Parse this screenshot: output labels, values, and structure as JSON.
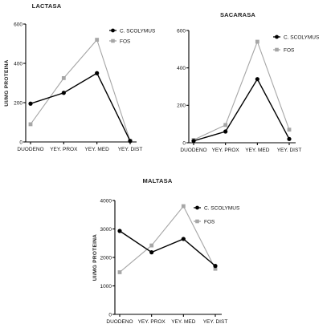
{
  "chart_data": [
    {
      "type": "line",
      "title": "LACTASA",
      "ylabel": "UI/MG PROTEINA",
      "xlabel": "",
      "categories": [
        "DUODENO",
        "YEY. PROX",
        "YEY. MED",
        "YEY. DIST"
      ],
      "ylim": [
        0,
        600
      ],
      "yticks": [
        0,
        200,
        400,
        600
      ],
      "grid": false,
      "legend_position": "top-right",
      "series": [
        {
          "name": "C. SCOLYMUS",
          "values": [
            195,
            250,
            350,
            5
          ],
          "color": "#000000",
          "marker": "circle"
        },
        {
          "name": "FOS",
          "values": [
            90,
            325,
            520,
            5
          ],
          "color": "#a6a6a6",
          "marker": "square"
        }
      ]
    },
    {
      "type": "line",
      "title": "SACARASA",
      "ylabel": "",
      "xlabel": "",
      "categories": [
        "DUODENO",
        "YEY. PROX",
        "YEY. MED",
        "YEY. DIST"
      ],
      "ylim": [
        0,
        600
      ],
      "yticks": [
        0,
        200,
        400,
        600
      ],
      "grid": false,
      "legend_position": "top-right",
      "series": [
        {
          "name": "C. SCOLYMUS",
          "values": [
            10,
            60,
            340,
            20
          ],
          "color": "#000000",
          "marker": "circle"
        },
        {
          "name": "FOS",
          "values": [
            15,
            95,
            540,
            70
          ],
          "color": "#a6a6a6",
          "marker": "square"
        }
      ]
    },
    {
      "type": "line",
      "title": "MALTASA",
      "ylabel": "UI/MG PROTEINA",
      "xlabel": "",
      "categories": [
        "DUODENO",
        "YEY. PROX",
        "YEY. MED",
        "YEY. DIST"
      ],
      "ylim": [
        0,
        4000
      ],
      "yticks": [
        0,
        1000,
        2000,
        3000,
        4000
      ],
      "grid": false,
      "legend_position": "top-right",
      "series": [
        {
          "name": "C. SCOLYMUS",
          "values": [
            2930,
            2180,
            2650,
            1700
          ],
          "color": "#000000",
          "marker": "circle"
        },
        {
          "name": "FOS",
          "values": [
            1480,
            2420,
            3800,
            1600
          ],
          "color": "#a6a6a6",
          "marker": "square"
        }
      ]
    }
  ]
}
